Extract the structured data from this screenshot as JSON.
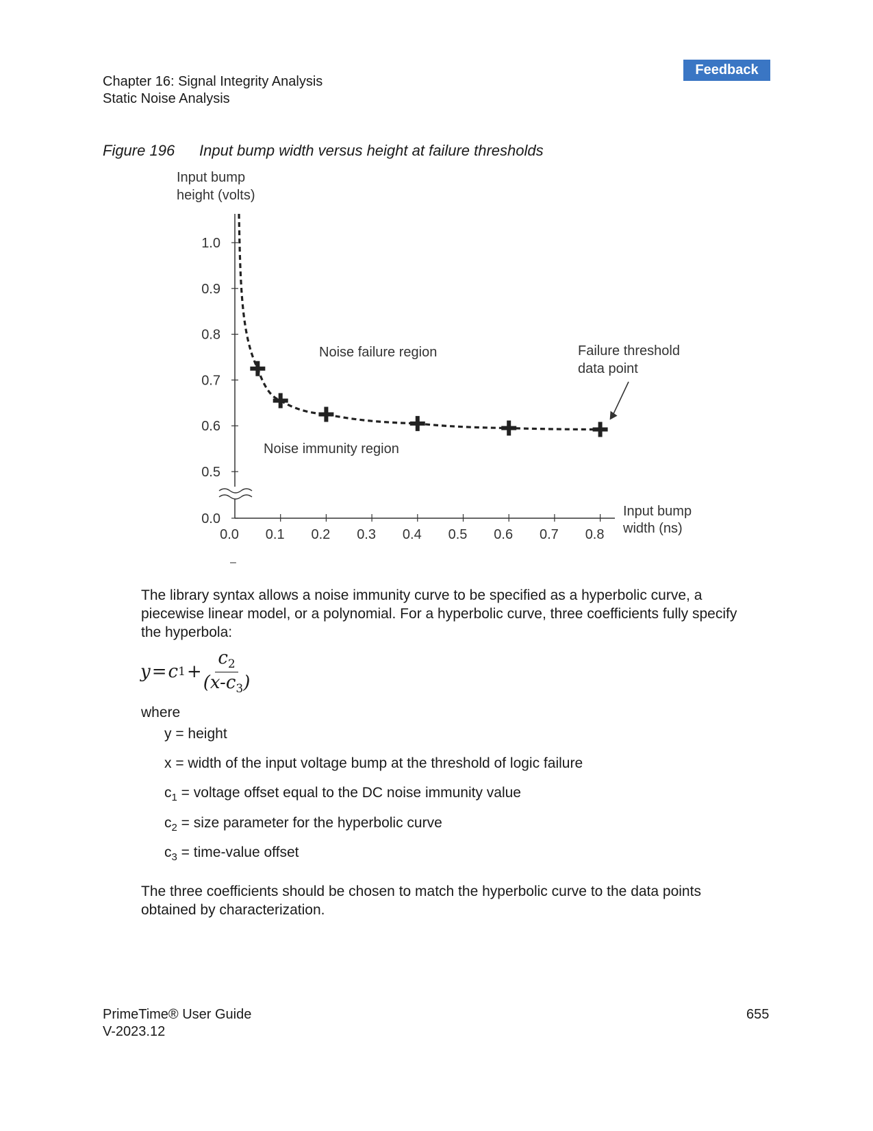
{
  "header": {
    "chapter": "Chapter 16: Signal Integrity Analysis",
    "section": "Static Noise Analysis",
    "feedback_label": "Feedback"
  },
  "figure": {
    "number": "Figure 196",
    "caption": "Input bump width versus height at failure thresholds"
  },
  "chart_data": {
    "type": "scatter",
    "ylabel_line1": "Input bump",
    "ylabel_line2": "height (volts)",
    "xlabel_line1": "Input bump",
    "xlabel_line2": "width (ns)",
    "x_ticks": [
      "0.0",
      "0.1",
      "0.2",
      "0.3",
      "0.4",
      "0.5",
      "0.6",
      "0.7",
      "0.8"
    ],
    "y_ticks": [
      "0.0",
      "0.5",
      "0.6",
      "0.7",
      "0.8",
      "0.9",
      "1.0"
    ],
    "xlim": [
      0.0,
      0.8
    ],
    "ylim_upper": [
      0.5,
      1.0
    ],
    "axis_break": "y between 0.0 and 0.5",
    "points": [
      {
        "x": 0.05,
        "y": 0.725
      },
      {
        "x": 0.1,
        "y": 0.655
      },
      {
        "x": 0.2,
        "y": 0.625
      },
      {
        "x": 0.4,
        "y": 0.605
      },
      {
        "x": 0.6,
        "y": 0.595
      },
      {
        "x": 0.8,
        "y": 0.592
      }
    ],
    "curve": "dashed hyperbolic fit through points",
    "annotations": {
      "failure_region": "Noise failure region",
      "immunity_region": "Noise immunity region",
      "threshold_line1": "Failure threshold",
      "threshold_line2": "data point"
    },
    "stray_mark": "–"
  },
  "body": {
    "para1": "The library syntax allows a noise immunity curve to be specified as a hyperbolic curve, a piecewise linear model, or a polynomial. For a hyperbolic curve, three coefficients fully specify the hyperbola:",
    "formula": {
      "y": "y",
      "eq": "=",
      "c1": "c",
      "c1_sub": "1",
      "plus": "+",
      "c2": "c",
      "c2_sub": "2",
      "den_open": "(x-c",
      "c3_sub": "3",
      "den_close": ")"
    },
    "where": "where",
    "defs": [
      {
        "lhs": "y",
        "sub": "",
        "rhs": " = height"
      },
      {
        "lhs": "x",
        "sub": "",
        "rhs": " = width of the input voltage bump at the threshold of logic failure"
      },
      {
        "lhs": "c",
        "sub": "1",
        "rhs": " = voltage offset equal to the DC noise immunity value"
      },
      {
        "lhs": "c",
        "sub": "2",
        "rhs": " = size parameter for the hyperbolic curve"
      },
      {
        "lhs": "c",
        "sub": "3",
        "rhs": " = time-value offset"
      }
    ],
    "para2": "The three coefficients should be chosen to match the hyperbolic curve to the data points obtained by characterization."
  },
  "footer": {
    "title": "PrimeTime® User Guide",
    "version": "V-2023.12",
    "page": "655"
  }
}
